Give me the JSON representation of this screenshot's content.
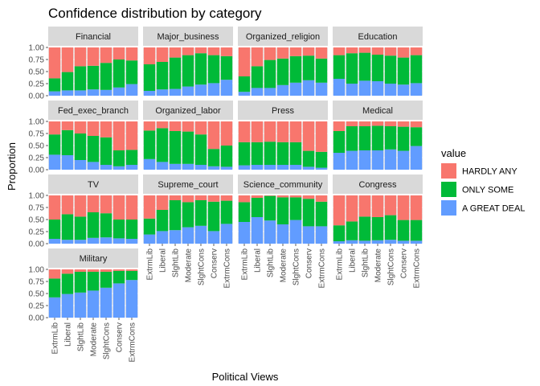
{
  "chart_data": {
    "type": "bar",
    "title": "Confidence distribution by category",
    "xlabel": "Political Views",
    "ylabel": "Proportion",
    "ylim": [
      0,
      1
    ],
    "yticks": [
      "0.00",
      "0.25",
      "0.50",
      "0.75",
      "1.00"
    ],
    "categories": [
      "ExtrmLib",
      "Liberal",
      "SlghtLib",
      "Moderate",
      "SlghtCons",
      "Conserv",
      "ExtrmCons"
    ],
    "legend": {
      "title": "value",
      "placement": "right",
      "entries": [
        {
          "label": "HARDLY ANY",
          "color": "#F8766D"
        },
        {
          "label": "ONLY SOME",
          "color": "#00BA38"
        },
        {
          "label": "A GREAT DEAL",
          "color": "#619CFF"
        }
      ]
    },
    "stack_order_bottom_to_top": [
      "A GREAT DEAL",
      "ONLY SOME",
      "HARDLY ANY"
    ],
    "panels": [
      {
        "name": "Financial",
        "great_deal": [
          0.09,
          0.11,
          0.11,
          0.13,
          0.12,
          0.17,
          0.24
        ],
        "only_some": [
          0.27,
          0.38,
          0.5,
          0.49,
          0.56,
          0.58,
          0.49
        ]
      },
      {
        "name": "Major_business",
        "great_deal": [
          0.1,
          0.13,
          0.14,
          0.19,
          0.23,
          0.26,
          0.33
        ],
        "only_some": [
          0.55,
          0.57,
          0.65,
          0.65,
          0.65,
          0.58,
          0.49
        ]
      },
      {
        "name": "Organized_religion",
        "great_deal": [
          0.08,
          0.16,
          0.16,
          0.22,
          0.27,
          0.32,
          0.27
        ],
        "only_some": [
          0.32,
          0.45,
          0.58,
          0.55,
          0.55,
          0.51,
          0.5
        ]
      },
      {
        "name": "Education",
        "great_deal": [
          0.35,
          0.25,
          0.31,
          0.3,
          0.25,
          0.23,
          0.26
        ],
        "only_some": [
          0.49,
          0.63,
          0.58,
          0.55,
          0.58,
          0.56,
          0.58
        ]
      },
      {
        "name": "Fed_exec_branch",
        "great_deal": [
          0.31,
          0.3,
          0.2,
          0.16,
          0.1,
          0.07,
          0.1
        ],
        "only_some": [
          0.42,
          0.52,
          0.55,
          0.54,
          0.57,
          0.33,
          0.31
        ]
      },
      {
        "name": "Organized_labor",
        "great_deal": [
          0.22,
          0.16,
          0.12,
          0.12,
          0.1,
          0.07,
          0.06
        ],
        "only_some": [
          0.59,
          0.7,
          0.68,
          0.67,
          0.63,
          0.36,
          0.44
        ]
      },
      {
        "name": "Press",
        "great_deal": [
          0.09,
          0.1,
          0.1,
          0.1,
          0.1,
          0.06,
          0.04
        ],
        "only_some": [
          0.48,
          0.47,
          0.48,
          0.47,
          0.47,
          0.33,
          0.33
        ]
      },
      {
        "name": "Medical",
        "great_deal": [
          0.35,
          0.39,
          0.4,
          0.4,
          0.42,
          0.39,
          0.49
        ],
        "only_some": [
          0.45,
          0.51,
          0.5,
          0.51,
          0.48,
          0.5,
          0.39
        ]
      },
      {
        "name": "TV",
        "great_deal": [
          0.1,
          0.08,
          0.08,
          0.12,
          0.13,
          0.11,
          0.1
        ],
        "only_some": [
          0.4,
          0.53,
          0.48,
          0.53,
          0.5,
          0.39,
          0.4
        ]
      },
      {
        "name": "Supreme_court",
        "great_deal": [
          0.19,
          0.26,
          0.28,
          0.34,
          0.37,
          0.26,
          0.41
        ],
        "only_some": [
          0.33,
          0.44,
          0.62,
          0.52,
          0.53,
          0.61,
          0.48
        ]
      },
      {
        "name": "Science_community",
        "great_deal": [
          0.45,
          0.55,
          0.48,
          0.4,
          0.49,
          0.36,
          0.36
        ],
        "only_some": [
          0.41,
          0.4,
          0.51,
          0.56,
          0.47,
          0.57,
          0.51
        ]
      },
      {
        "name": "Congress",
        "great_deal": [
          0.05,
          0.07,
          0.06,
          0.07,
          0.08,
          0.06,
          0.06
        ],
        "only_some": [
          0.33,
          0.39,
          0.5,
          0.48,
          0.51,
          0.43,
          0.43
        ]
      },
      {
        "name": "Military",
        "great_deal": [
          0.42,
          0.49,
          0.52,
          0.56,
          0.62,
          0.71,
          0.78
        ],
        "only_some": [
          0.39,
          0.42,
          0.43,
          0.39,
          0.33,
          0.26,
          0.19
        ]
      }
    ]
  }
}
